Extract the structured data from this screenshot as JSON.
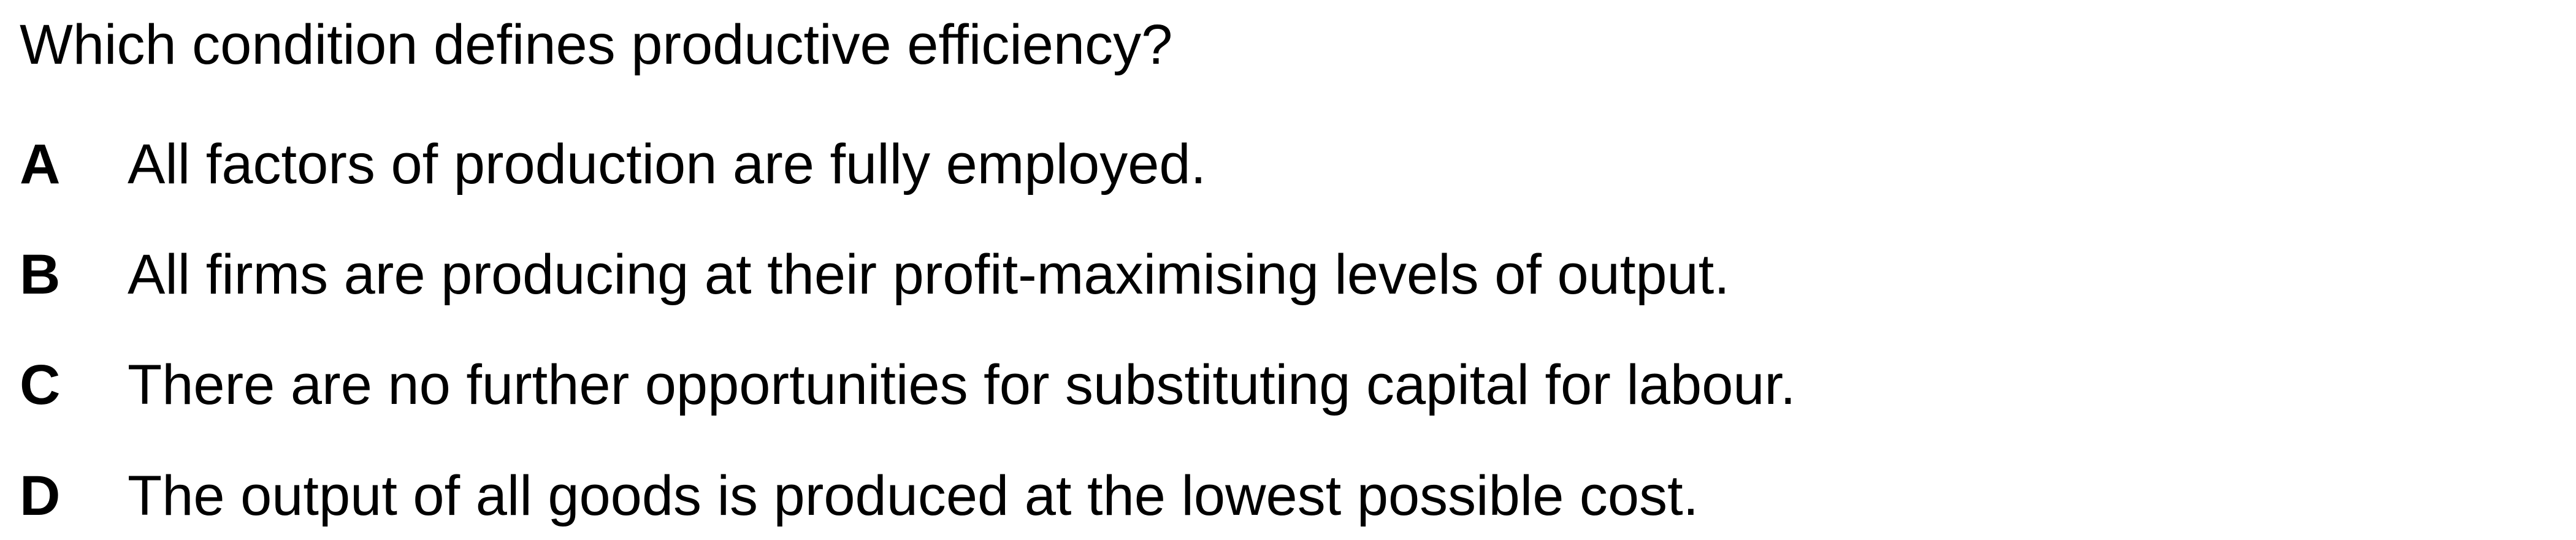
{
  "question": {
    "text": "Which condition defines productive efficiency?"
  },
  "options": [
    {
      "letter": "A",
      "text": "All factors of production are fully employed."
    },
    {
      "letter": "B",
      "text": "All firms are producing at their profit-maximising levels of output."
    },
    {
      "letter": "C",
      "text": "There are no further opportunities for substituting capital for labour."
    },
    {
      "letter": "D",
      "text": "The output of all goods is produced at the lowest possible cost."
    }
  ]
}
